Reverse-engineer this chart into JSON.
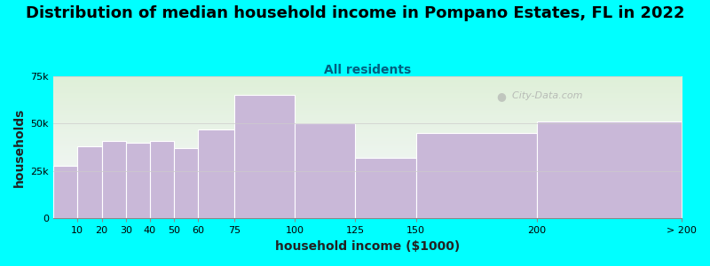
{
  "title": "Distribution of median household income in Pompano Estates, FL in 2022",
  "subtitle": "All residents",
  "xlabel": "household income ($1000)",
  "ylabel": "households",
  "background_color": "#00FFFF",
  "plot_bg_top": "#dff0d8",
  "plot_bg_bottom": "#f8f8ff",
  "bar_color": "#c9b8d8",
  "bar_edge_color": "#ffffff",
  "bar_left_edges": [
    0,
    10,
    20,
    30,
    40,
    50,
    60,
    75,
    100,
    125,
    150,
    200
  ],
  "bar_right_edges": [
    10,
    20,
    30,
    40,
    50,
    60,
    75,
    100,
    125,
    150,
    200,
    260
  ],
  "values": [
    28000,
    38000,
    41000,
    40000,
    41000,
    37000,
    47000,
    65000,
    50000,
    32000,
    45000,
    51000
  ],
  "ylim": [
    0,
    75000
  ],
  "xlim": [
    0,
    260
  ],
  "yticks": [
    0,
    25000,
    50000,
    75000
  ],
  "ytick_labels": [
    "0",
    "25k",
    "50k",
    "75k"
  ],
  "xtick_positions": [
    10,
    20,
    30,
    40,
    50,
    60,
    75,
    100,
    125,
    150,
    200,
    260
  ],
  "xtick_labels": [
    "10",
    "20",
    "30",
    "40",
    "50",
    "60",
    "75",
    "100",
    "125",
    "150",
    "200",
    "> 200"
  ],
  "title_fontsize": 13,
  "subtitle_fontsize": 10,
  "subtitle_color": "#006080",
  "axis_label_fontsize": 10,
  "tick_fontsize": 8,
  "watermark_text": "City-Data.com",
  "title_color": "#000000",
  "grid_color": "#cccccc"
}
